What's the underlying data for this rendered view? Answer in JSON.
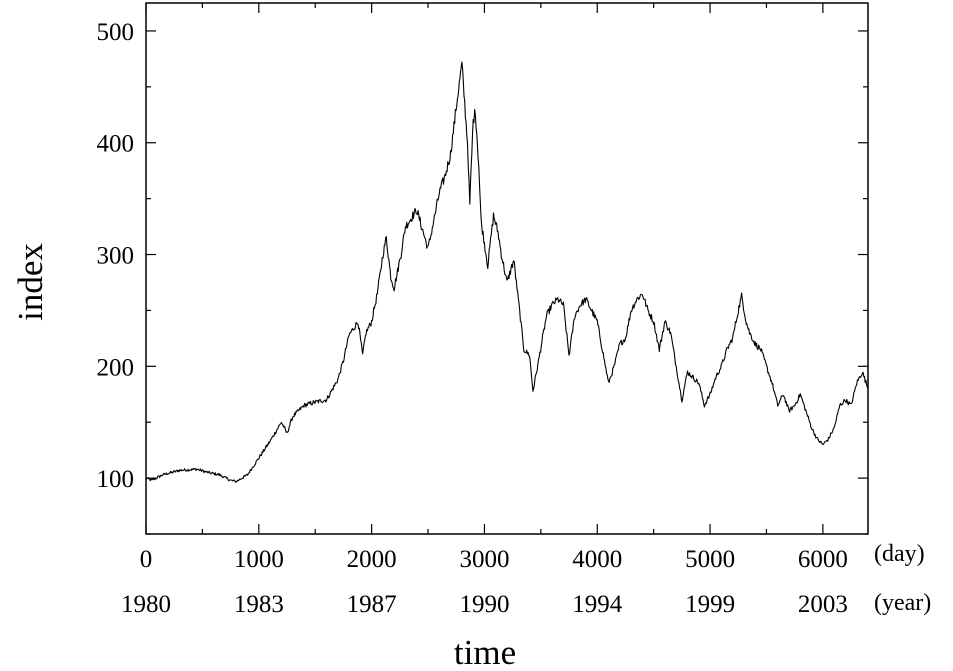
{
  "chart_data": {
    "type": "line",
    "title": "",
    "xlabel": "time",
    "ylabel": "index",
    "xlim": [
      0,
      6400
    ],
    "ylim": [
      50,
      525
    ],
    "grid": false,
    "legend": "none",
    "line_color": "#000000",
    "x_ticks": [
      {
        "day": "0",
        "year": "1980"
      },
      {
        "day": "1000",
        "year": "1983"
      },
      {
        "day": "2000",
        "year": "1987"
      },
      {
        "day": "3000",
        "year": "1990"
      },
      {
        "day": "4000",
        "year": "1994"
      },
      {
        "day": "5000",
        "year": "1999"
      },
      {
        "day": "6000",
        "year": "2003"
      }
    ],
    "x_tick_values": [
      0,
      1000,
      2000,
      3000,
      4000,
      5000,
      6000
    ],
    "x_unit_day": "(day)",
    "x_unit_year": "(year)",
    "y_ticks": [
      "100",
      "200",
      "300",
      "400",
      "500"
    ],
    "y_tick_values": [
      100,
      200,
      300,
      400,
      500
    ],
    "series": [
      {
        "x": [
          0,
          50,
          150,
          300,
          450,
          550,
          650,
          750,
          800,
          900,
          1000,
          1100,
          1200,
          1250,
          1300,
          1400,
          1500,
          1600,
          1700,
          1750,
          1800,
          1880,
          1920,
          1950,
          2000,
          2050,
          2100,
          2130,
          2170,
          2200,
          2230,
          2260,
          2300,
          2400,
          2500,
          2550,
          2600,
          2650,
          2700,
          2760,
          2800,
          2850,
          2870,
          2900,
          2920,
          2950,
          2970,
          3000,
          3030,
          3080,
          3120,
          3150,
          3200,
          3260,
          3300,
          3350,
          3400,
          3430,
          3480,
          3550,
          3600,
          3650,
          3700,
          3750,
          3800,
          3850,
          3900,
          3950,
          4000,
          4100,
          4150,
          4200,
          4250,
          4300,
          4350,
          4400,
          4450,
          4500,
          4550,
          4600,
          4650,
          4700,
          4750,
          4800,
          4850,
          4900,
          4950,
          5000,
          5050,
          5100,
          5150,
          5200,
          5250,
          5280,
          5320,
          5350,
          5400,
          5450,
          5500,
          5550,
          5600,
          5650,
          5700,
          5750,
          5800,
          5900,
          5950,
          6000,
          6050,
          6100,
          6150,
          6200,
          6250,
          6300,
          6350,
          6400
        ],
        "y": [
          100,
          98,
          103,
          107,
          108,
          105,
          103,
          98,
          97,
          103,
          118,
          133,
          150,
          140,
          155,
          165,
          168,
          170,
          188,
          205,
          228,
          240,
          210,
          230,
          240,
          265,
          300,
          315,
          280,
          270,
          285,
          300,
          325,
          340,
          305,
          330,
          355,
          370,
          390,
          440,
          470,
          400,
          345,
          420,
          428,
          380,
          330,
          310,
          290,
          335,
          320,
          300,
          275,
          295,
          260,
          215,
          210,
          178,
          205,
          245,
          255,
          260,
          255,
          210,
          245,
          255,
          260,
          250,
          240,
          185,
          200,
          220,
          225,
          250,
          260,
          265,
          250,
          240,
          215,
          240,
          230,
          200,
          170,
          195,
          190,
          185,
          165,
          175,
          190,
          200,
          215,
          225,
          250,
          263,
          240,
          230,
          220,
          215,
          200,
          185,
          165,
          175,
          160,
          165,
          175,
          145,
          135,
          130,
          135,
          145,
          165,
          170,
          165,
          185,
          195,
          180
        ]
      }
    ]
  }
}
